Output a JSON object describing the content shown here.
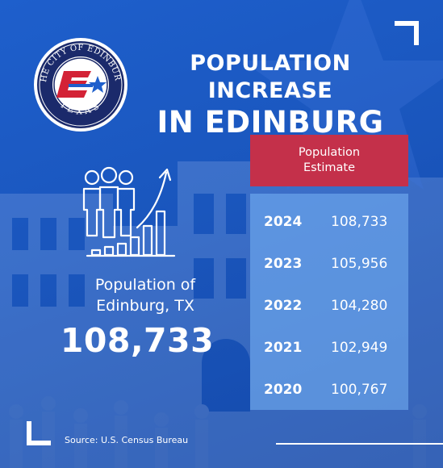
{
  "logo": {
    "ring_text": "THE CITY OF EDINBURG",
    "bottom_text": "TEXAS",
    "colors": {
      "navy": "#1b2a6b",
      "red": "#d32236",
      "blue": "#1e5fcc"
    }
  },
  "title": {
    "line1": "POPULATION INCREASE",
    "line2": "IN EDINBURG"
  },
  "table": {
    "header_line1": "Population",
    "header_line2": "Estimate",
    "rows": [
      {
        "year": "2024",
        "value": "108,733"
      },
      {
        "year": "2023",
        "value": "105,956"
      },
      {
        "year": "2022",
        "value": "104,280"
      },
      {
        "year": "2021",
        "value": "102,949"
      },
      {
        "year": "2020",
        "value": "100,767"
      }
    ]
  },
  "summary": {
    "label_line1": "Population of",
    "label_line2": "Edinburg, TX",
    "value": "108,733"
  },
  "source": "Source: U.S. Census Bureau",
  "colors": {
    "background": "#1a56bd",
    "header_red": "#c4304a",
    "table_body": "#78b4f5"
  }
}
